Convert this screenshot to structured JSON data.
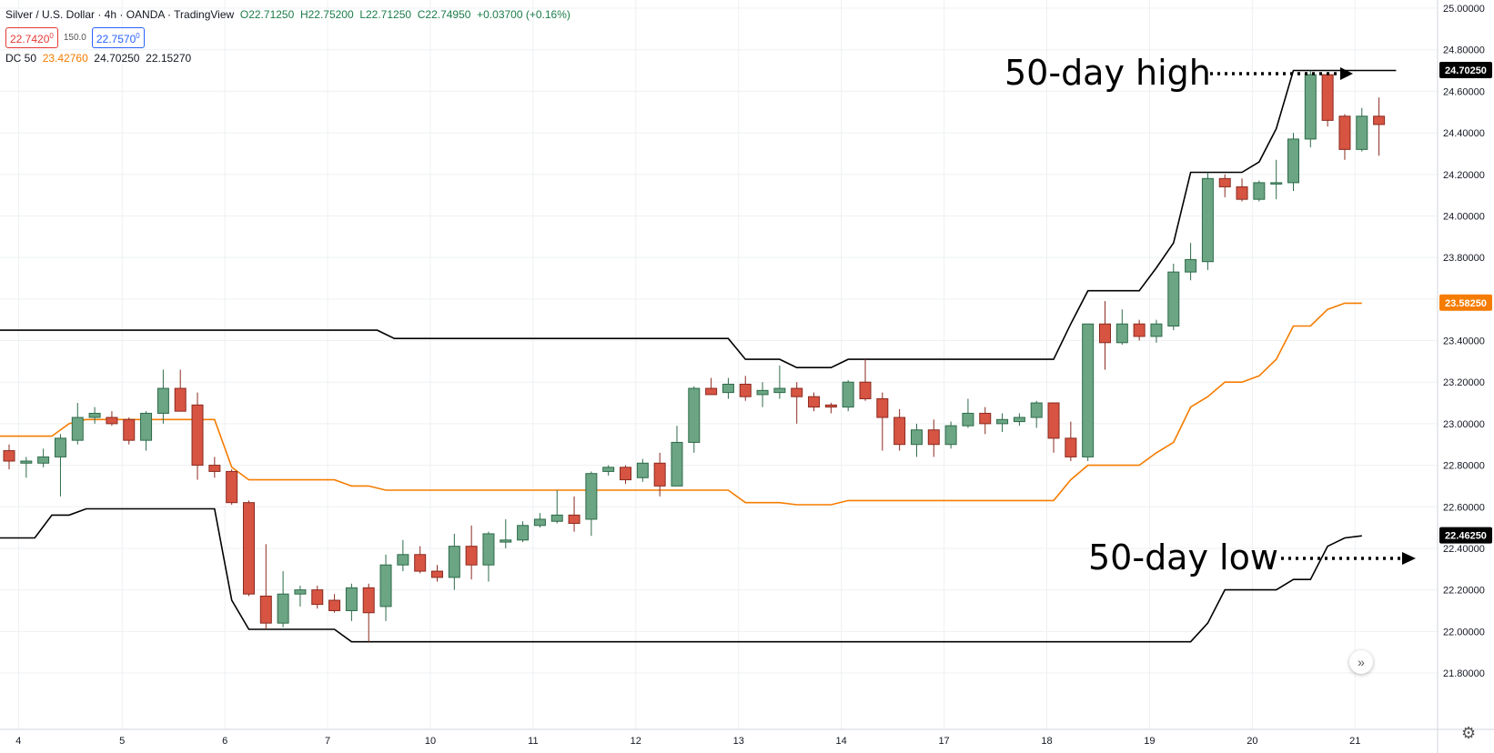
{
  "header": {
    "symbol": "Silver / U.S. Dollar · 4h · OANDA · TradingView",
    "open": "O22.71250",
    "high": "H22.75200",
    "low": "L22.71250",
    "close": "C22.74950",
    "change": "+0.03700 (+0.16%)",
    "sell_price": "22.7420",
    "sell_super": "0",
    "spread": "150.0",
    "buy_price": "22.7570",
    "buy_super": "0"
  },
  "indicator": {
    "label": "DC 50",
    "mid": "23.42760",
    "upper": "24.70250",
    "lower": "22.15270"
  },
  "annotations": {
    "high_label": "50-day high",
    "low_label": "50-day low"
  },
  "colors": {
    "up": "#6ba583",
    "up_border": "#2e6b4a",
    "down": "#d75442",
    "down_border": "#8b2a1f",
    "upper_lower": "#000000",
    "middle": "#f57c00",
    "grid": "#eef0f3"
  },
  "icons": {
    "forward": "double-chevron-right-icon",
    "settings": "gear-icon"
  },
  "chart_data": {
    "type": "candlestick",
    "ylim": [
      21.75,
      25.0
    ],
    "y_ticks": [
      "25.00000",
      "24.80000",
      "24.60000",
      "24.40000",
      "24.20000",
      "24.00000",
      "23.80000",
      "23.60000",
      "23.40000",
      "23.20000",
      "23.00000",
      "22.80000",
      "22.60000",
      "22.40000",
      "22.20000",
      "22.00000",
      "21.80000"
    ],
    "x_ticks": [
      {
        "label": "4",
        "index": 0.55
      },
      {
        "label": "5",
        "index": 6.6
      },
      {
        "label": "6",
        "index": 12.6
      },
      {
        "label": "7",
        "index": 18.6
      },
      {
        "label": "10",
        "index": 24.6
      },
      {
        "label": "11",
        "index": 30.6
      },
      {
        "label": "12",
        "index": 36.6
      },
      {
        "label": "13",
        "index": 42.6
      },
      {
        "label": "14",
        "index": 48.6
      },
      {
        "label": "17",
        "index": 54.6
      },
      {
        "label": "18",
        "index": 60.6
      },
      {
        "label": "19",
        "index": 66.6
      },
      {
        "label": "20",
        "index": 72.6
      },
      {
        "label": "21",
        "index": 78.6
      }
    ],
    "price_labels": [
      {
        "value": 24.7025,
        "text": "24.70250",
        "color": "#000000"
      },
      {
        "value": 23.5825,
        "text": "23.58250",
        "color": "#f57c00"
      },
      {
        "value": 22.4625,
        "text": "22.46250",
        "color": "#000000"
      }
    ],
    "candles": [
      [
        22.87,
        22.9,
        22.78,
        22.82
      ],
      [
        22.81,
        22.84,
        22.74,
        22.82
      ],
      [
        22.81,
        22.88,
        22.79,
        22.84
      ],
      [
        22.84,
        22.95,
        22.65,
        22.93
      ],
      [
        22.92,
        23.1,
        22.9,
        23.03
      ],
      [
        23.03,
        23.08,
        23.0,
        23.05
      ],
      [
        23.03,
        23.06,
        22.99,
        23.0
      ],
      [
        23.02,
        23.03,
        22.9,
        22.92
      ],
      [
        22.92,
        23.06,
        22.87,
        23.05
      ],
      [
        23.05,
        23.26,
        23.0,
        23.17
      ],
      [
        23.17,
        23.26,
        23.06,
        23.06
      ],
      [
        23.09,
        23.15,
        22.73,
        22.8
      ],
      [
        22.8,
        22.84,
        22.74,
        22.77
      ],
      [
        22.77,
        22.78,
        22.61,
        22.62
      ],
      [
        22.62,
        22.63,
        22.17,
        22.18
      ],
      [
        22.17,
        22.42,
        22.01,
        22.04
      ],
      [
        22.04,
        22.29,
        22.02,
        22.18
      ],
      [
        22.18,
        22.22,
        22.12,
        22.2
      ],
      [
        22.2,
        22.22,
        22.11,
        22.13
      ],
      [
        22.15,
        22.18,
        22.09,
        22.1
      ],
      [
        22.1,
        22.23,
        22.05,
        22.21
      ],
      [
        22.21,
        22.23,
        21.95,
        22.09
      ],
      [
        22.12,
        22.37,
        22.05,
        22.32
      ],
      [
        22.32,
        22.44,
        22.29,
        22.37
      ],
      [
        22.37,
        22.41,
        22.28,
        22.29
      ],
      [
        22.29,
        22.32,
        22.24,
        22.26
      ],
      [
        22.26,
        22.47,
        22.2,
        22.41
      ],
      [
        22.41,
        22.51,
        22.25,
        22.32
      ],
      [
        22.32,
        22.48,
        22.24,
        22.47
      ],
      [
        22.43,
        22.54,
        22.4,
        22.44
      ],
      [
        22.44,
        22.53,
        22.43,
        22.51
      ],
      [
        22.51,
        22.57,
        22.5,
        22.54
      ],
      [
        22.53,
        22.68,
        22.52,
        22.56
      ],
      [
        22.56,
        22.65,
        22.48,
        22.52
      ],
      [
        22.54,
        22.77,
        22.46,
        22.76
      ],
      [
        22.77,
        22.8,
        22.75,
        22.79
      ],
      [
        22.79,
        22.8,
        22.71,
        22.73
      ],
      [
        22.74,
        22.83,
        22.72,
        22.81
      ],
      [
        22.81,
        22.86,
        22.65,
        22.7
      ],
      [
        22.7,
        22.99,
        22.7,
        22.91
      ],
      [
        22.91,
        23.18,
        22.86,
        23.17
      ],
      [
        23.17,
        23.22,
        23.14,
        23.14
      ],
      [
        23.15,
        23.22,
        23.12,
        23.19
      ],
      [
        23.19,
        23.23,
        23.11,
        23.13
      ],
      [
        23.14,
        23.2,
        23.08,
        23.16
      ],
      [
        23.15,
        23.28,
        23.12,
        23.17
      ],
      [
        23.17,
        23.2,
        23.0,
        23.13
      ],
      [
        23.13,
        23.15,
        23.06,
        23.08
      ],
      [
        23.09,
        23.1,
        23.05,
        23.08
      ],
      [
        23.08,
        23.21,
        23.06,
        23.2
      ],
      [
        23.2,
        23.31,
        23.11,
        23.12
      ],
      [
        23.12,
        23.15,
        22.87,
        23.03
      ],
      [
        23.03,
        23.07,
        22.87,
        22.9
      ],
      [
        22.9,
        23.0,
        22.84,
        22.97
      ],
      [
        22.97,
        23.02,
        22.84,
        22.9
      ],
      [
        22.9,
        23.01,
        22.88,
        22.99
      ],
      [
        22.99,
        23.12,
        22.98,
        23.05
      ],
      [
        23.05,
        23.08,
        22.95,
        23.0
      ],
      [
        23.0,
        23.05,
        22.96,
        23.02
      ],
      [
        23.01,
        23.05,
        22.99,
        23.03
      ],
      [
        23.03,
        23.11,
        22.98,
        23.1
      ],
      [
        23.1,
        23.1,
        22.86,
        22.93
      ],
      [
        22.93,
        23.01,
        22.82,
        22.84
      ],
      [
        22.84,
        23.48,
        22.82,
        23.48
      ],
      [
        23.48,
        23.59,
        23.26,
        23.39
      ],
      [
        23.39,
        23.55,
        23.38,
        23.48
      ],
      [
        23.48,
        23.5,
        23.4,
        23.42
      ],
      [
        23.42,
        23.5,
        23.39,
        23.48
      ],
      [
        23.47,
        23.77,
        23.45,
        23.73
      ],
      [
        23.73,
        23.87,
        23.69,
        23.79
      ],
      [
        23.78,
        24.21,
        23.74,
        24.18
      ],
      [
        24.18,
        24.2,
        24.09,
        24.14
      ],
      [
        24.14,
        24.18,
        24.07,
        24.08
      ],
      [
        24.08,
        24.17,
        24.07,
        24.16
      ],
      [
        24.16,
        24.27,
        24.08,
        24.16
      ],
      [
        24.16,
        24.4,
        24.12,
        24.37
      ],
      [
        24.37,
        24.7,
        24.33,
        24.68
      ],
      [
        24.68,
        24.69,
        24.43,
        24.46
      ],
      [
        24.48,
        24.49,
        24.27,
        24.32
      ],
      [
        24.32,
        24.52,
        24.31,
        24.48
      ],
      [
        24.48,
        24.57,
        24.29,
        24.44
      ]
    ],
    "upper": [
      [
        -1,
        23.45
      ],
      [
        21.5,
        23.45
      ],
      [
        22.5,
        23.41
      ],
      [
        42,
        23.41
      ],
      [
        43,
        23.31
      ],
      [
        45,
        23.31
      ],
      [
        46,
        23.27
      ],
      [
        48,
        23.27
      ],
      [
        49,
        23.31
      ],
      [
        61,
        23.31
      ],
      [
        62,
        23.48
      ],
      [
        63,
        23.64
      ],
      [
        66,
        23.64
      ],
      [
        67,
        23.75
      ],
      [
        68,
        23.87
      ],
      [
        69,
        24.21
      ],
      [
        72,
        24.21
      ],
      [
        73,
        24.26
      ],
      [
        74,
        24.42
      ],
      [
        75,
        24.7
      ],
      [
        81,
        24.7
      ]
    ],
    "lower": [
      [
        -1,
        22.45
      ],
      [
        1.5,
        22.45
      ],
      [
        2.5,
        22.56
      ],
      [
        3.5,
        22.56
      ],
      [
        4.5,
        22.59
      ],
      [
        12,
        22.59
      ],
      [
        13,
        22.15
      ],
      [
        14,
        22.01
      ],
      [
        19,
        22.01
      ],
      [
        20,
        21.95
      ],
      [
        69,
        21.95
      ],
      [
        70,
        22.04
      ],
      [
        71,
        22.2
      ],
      [
        74,
        22.2
      ],
      [
        75,
        22.25
      ],
      [
        76,
        22.25
      ],
      [
        77,
        22.41
      ],
      [
        78,
        22.45
      ],
      [
        79,
        22.46
      ]
    ],
    "middle": [
      [
        -1,
        22.94
      ],
      [
        1.5,
        22.94
      ],
      [
        2.5,
        22.94
      ],
      [
        3.5,
        23.0
      ],
      [
        4.5,
        23.02
      ],
      [
        12,
        23.02
      ],
      [
        13,
        22.79
      ],
      [
        14,
        22.73
      ],
      [
        19,
        22.73
      ],
      [
        20,
        22.7
      ],
      [
        21,
        22.7
      ],
      [
        22,
        22.68
      ],
      [
        42,
        22.68
      ],
      [
        43,
        22.62
      ],
      [
        45,
        22.62
      ],
      [
        46,
        22.61
      ],
      [
        48,
        22.61
      ],
      [
        49,
        22.63
      ],
      [
        61,
        22.63
      ],
      [
        62,
        22.73
      ],
      [
        63,
        22.8
      ],
      [
        66,
        22.8
      ],
      [
        67,
        22.86
      ],
      [
        68,
        22.91
      ],
      [
        69,
        23.08
      ],
      [
        70,
        23.13
      ],
      [
        71,
        23.2
      ],
      [
        72,
        23.2
      ],
      [
        73,
        23.23
      ],
      [
        74,
        23.31
      ],
      [
        75,
        23.47
      ],
      [
        76,
        23.47
      ],
      [
        77,
        23.55
      ],
      [
        78,
        23.58
      ],
      [
        79,
        23.58
      ]
    ]
  }
}
